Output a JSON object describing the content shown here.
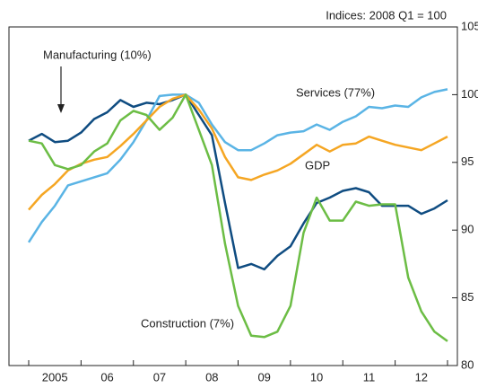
{
  "chart_data": {
    "type": "line",
    "annotation": "Indices:  2008 Q1 = 100",
    "categories": [
      null,
      null,
      "2005",
      null,
      null,
      null,
      "06",
      null,
      null,
      null,
      "07",
      null,
      null,
      null,
      "08",
      null,
      null,
      null,
      "09",
      null,
      null,
      null,
      "10",
      null,
      null,
      null,
      "11",
      null,
      null,
      null,
      "12",
      null,
      null
    ],
    "series": [
      {
        "name": "Manufacturing (10%)",
        "color": "#0f4c81",
        "values": [
          96.6,
          97.1,
          96.5,
          96.6,
          97.2,
          98.2,
          98.7,
          99.6,
          99.1,
          99.4,
          99.3,
          99.6,
          100,
          98.5,
          97,
          92,
          87.2,
          87.5,
          87.1,
          88.1,
          88.8,
          90.5,
          92,
          92.4,
          92.9,
          93.1,
          92.8,
          91.8,
          91.8,
          91.8,
          91.2,
          91.6,
          92.2
        ]
      },
      {
        "name": "Services (77%)",
        "color": "#5ab4e5",
        "values": [
          89.1,
          90.6,
          91.8,
          93.3,
          93.6,
          93.9,
          94.2,
          95.2,
          96.5,
          98.1,
          99.9,
          100,
          100,
          99.4,
          97.8,
          96.5,
          95.9,
          95.9,
          96.4,
          97,
          97.2,
          97.3,
          97.8,
          97.4,
          98,
          98.4,
          99.1,
          99,
          99.2,
          99.1,
          99.8,
          100.2,
          100.4
        ]
      },
      {
        "name": "GDP",
        "color": "#f5a623",
        "values": [
          91.5,
          92.6,
          93.4,
          94.4,
          94.9,
          95.2,
          95.4,
          96.2,
          97.1,
          98.1,
          99.1,
          99.7,
          100,
          98.9,
          97.5,
          95.4,
          93.9,
          93.7,
          94.1,
          94.4,
          94.9,
          95.6,
          96.3,
          95.8,
          96.3,
          96.4,
          96.9,
          96.6,
          96.3,
          96.1,
          95.9,
          96.4,
          96.9
        ]
      },
      {
        "name": "Construction (7%)",
        "color": "#6cbd45",
        "values": [
          96.6,
          96.4,
          94.8,
          94.5,
          94.8,
          95.8,
          96.4,
          98.1,
          98.8,
          98.5,
          97.4,
          98.3,
          100,
          97.4,
          94.8,
          89,
          84.4,
          82.2,
          82.1,
          82.5,
          84.4,
          89.8,
          92.4,
          90.7,
          90.7,
          92.1,
          91.8,
          91.9,
          91.9,
          86.5,
          84,
          82.5,
          81.8
        ]
      }
    ],
    "ylim": [
      80,
      105
    ],
    "yticks": [
      80,
      85,
      90,
      95,
      100,
      105
    ]
  }
}
